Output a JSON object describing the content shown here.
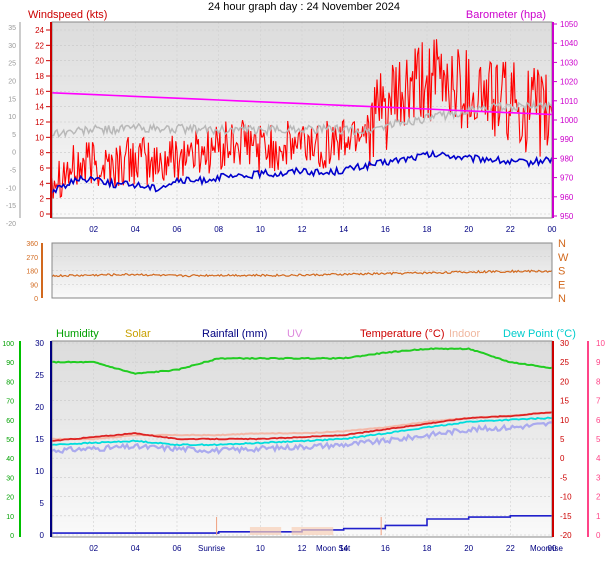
{
  "title": "24 hour graph day : 24 November 2024",
  "top_panel": {
    "label_left": "Windspeed (kts)",
    "label_right": "Barometer (hpa)",
    "colors": {
      "wind": "#ff0000",
      "gust": "#0000cc",
      "baro": "#ff00ff",
      "temp_band": "#c0c0c0",
      "left_axis": "#cc0000",
      "right_axis": "#cc00cc"
    }
  },
  "middle_panel": {
    "compass": [
      "N",
      "W",
      "S",
      "E",
      "N"
    ],
    "color": "#d2691e"
  },
  "bottom_panel": {
    "legend": [
      {
        "label": "Humidity",
        "color": "#00a000"
      },
      {
        "label": "Solar",
        "color": "#c8a000"
      },
      {
        "label": "Rainfall (mm)",
        "color": "#000080"
      },
      {
        "label": "UV",
        "color": "#dd88dd"
      },
      {
        "label": "Temperature (°C)",
        "color": "#cc0000"
      },
      {
        "label": "Indoor",
        "color": "#f0b8a0"
      },
      {
        "label": "Dew Point (°C)",
        "color": "#00cccc"
      }
    ],
    "events": {
      "sunrise": "Sunrise",
      "moonset": "Moon Set",
      "moonrise": "Moonrise"
    }
  },
  "chart_data": [
    {
      "type": "line",
      "title": "24 hour graph day : 24 November 2024",
      "xlabel": "",
      "x_ticks": [
        "02",
        "04",
        "06",
        "08",
        "10",
        "12",
        "14",
        "16",
        "18",
        "20",
        "22",
        "00"
      ],
      "outer_left_ticks": [
        "35",
        "30",
        "25",
        "20",
        "15",
        "10",
        "5",
        "0",
        "-5",
        "-10",
        "-15",
        "-20"
      ],
      "left_ticks": [
        "24",
        "22",
        "20",
        "18",
        "16",
        "14",
        "12",
        "10",
        "8",
        "6",
        "4",
        "2",
        "0"
      ],
      "right_ticks": [
        "1050",
        "1040",
        "1030",
        "1020",
        "1010",
        "1000",
        "990",
        "980",
        "970",
        "960",
        "950"
      ],
      "ylabel_left": "Windspeed (kts)",
      "ylabel_right": "Barometer (hpa)",
      "ylim_left": [
        0,
        25
      ],
      "ylim_right": [
        945,
        1050
      ],
      "hours": [
        0,
        1,
        2,
        3,
        4,
        5,
        6,
        7,
        8,
        9,
        10,
        11,
        12,
        13,
        14,
        15,
        16,
        17,
        18,
        19,
        20,
        21,
        22,
        23,
        24
      ],
      "series": [
        {
          "name": "Windspeed (kts)",
          "values": [
            5.5,
            6,
            7,
            6.5,
            7.5,
            6.5,
            8,
            8.5,
            9,
            9.5,
            9,
            9,
            9.5,
            9.5,
            10,
            12,
            14,
            16,
            18,
            18,
            17,
            16,
            15,
            14,
            13
          ]
        },
        {
          "name": "Barometer (hpa)",
          "values": [
            1012,
            1011.5,
            1011,
            1010.5,
            1010,
            1009.5,
            1009,
            1008.5,
            1008,
            1007.5,
            1007,
            1006.5,
            1006,
            1005.5,
            1005,
            1004.5,
            1004,
            1003.5,
            1003,
            1002.5,
            1002,
            1001.5,
            1001,
            1000.5,
            1000
          ]
        },
        {
          "values": [
            3,
            4.5,
            5,
            4,
            4,
            3.5,
            4.5,
            4.5,
            5,
            5,
            5.5,
            5.5,
            6,
            5.5,
            6,
            6.5,
            7,
            7.5,
            8,
            8,
            7.5,
            7.5,
            7,
            7,
            7.5
          ]
        },
        {
          "values": [
            11,
            11.2,
            11.5,
            11.5,
            11.8,
            11.5,
            11.6,
            11.5,
            11.4,
            11.5,
            11.3,
            11.5,
            11.6,
            11.5,
            11.5,
            11.2,
            12,
            12.5,
            13,
            13.5,
            14,
            14.5,
            14.5,
            14.6,
            14.8
          ]
        }
      ]
    },
    {
      "type": "line",
      "left_ticks": [
        "360",
        "270",
        "180",
        "90",
        "0"
      ],
      "right_ticks": [
        "N",
        "W",
        "S",
        "E",
        "N"
      ],
      "ylim": [
        0,
        360
      ],
      "hours": [
        0,
        2,
        4,
        6,
        8,
        10,
        12,
        14,
        16,
        18,
        20,
        22,
        24
      ],
      "series": [
        {
          "values": [
            145,
            150,
            155,
            145,
            150,
            148,
            150,
            155,
            160,
            165,
            170,
            175,
            175
          ]
        }
      ]
    },
    {
      "type": "line",
      "x_ticks": [
        "02",
        "04",
        "06",
        "10",
        "12",
        "14",
        "16",
        "18",
        "20",
        "22",
        "00"
      ],
      "outer_left_ticks": [
        "100",
        "90",
        "80",
        "70",
        "60",
        "50",
        "40",
        "30",
        "20",
        "10",
        "0"
      ],
      "left_ticks": [
        "30",
        "25",
        "20",
        "15",
        "10",
        "5",
        "0"
      ],
      "right_ticks": [
        "30",
        "25",
        "20",
        "15",
        "10",
        "5",
        "0",
        "-5",
        "-10",
        "-15",
        "-20"
      ],
      "far_right_ticks": [
        "10",
        "9",
        "8",
        "7",
        "6",
        "5",
        "4",
        "3",
        "2",
        "1",
        "0"
      ],
      "ylim_temp": [
        -20,
        30
      ],
      "ylim_humidity": [
        0,
        100
      ],
      "hours": [
        0,
        2,
        4,
        6,
        8,
        10,
        12,
        14,
        16,
        18,
        20,
        22,
        24
      ],
      "series": [
        {
          "name": "Humidity",
          "values": [
            90,
            90,
            84,
            86,
            92,
            92,
            92,
            92,
            95,
            97,
            97,
            90,
            87
          ]
        },
        {
          "name": "Temperature (°C)",
          "values": [
            4.5,
            5.5,
            6.5,
            5,
            5,
            5,
            5.5,
            6,
            7.5,
            9,
            10.5,
            11,
            12
          ]
        },
        {
          "name": "Dew Point (°C)",
          "values": [
            3.5,
            4,
            4.5,
            3.5,
            3.5,
            4,
            4.5,
            5,
            6.5,
            8,
            9.5,
            10,
            10.5
          ]
        },
        {
          "name": "Indoor",
          "values": [
            5,
            5,
            6,
            6,
            6,
            6.5,
            6.5,
            7,
            8,
            9.5,
            10.5,
            11,
            12
          ]
        },
        {
          "values": [
            2,
            2.5,
            3,
            2.5,
            2,
            2.5,
            3,
            3.5,
            4.5,
            6,
            7.5,
            8,
            9
          ]
        },
        {
          "name": "Rainfall (mm)",
          "values": [
            0.3,
            0.3,
            0.3,
            0.3,
            0.5,
            0.5,
            0.8,
            1,
            1.5,
            2.5,
            2.8,
            3,
            3
          ]
        }
      ]
    }
  ]
}
